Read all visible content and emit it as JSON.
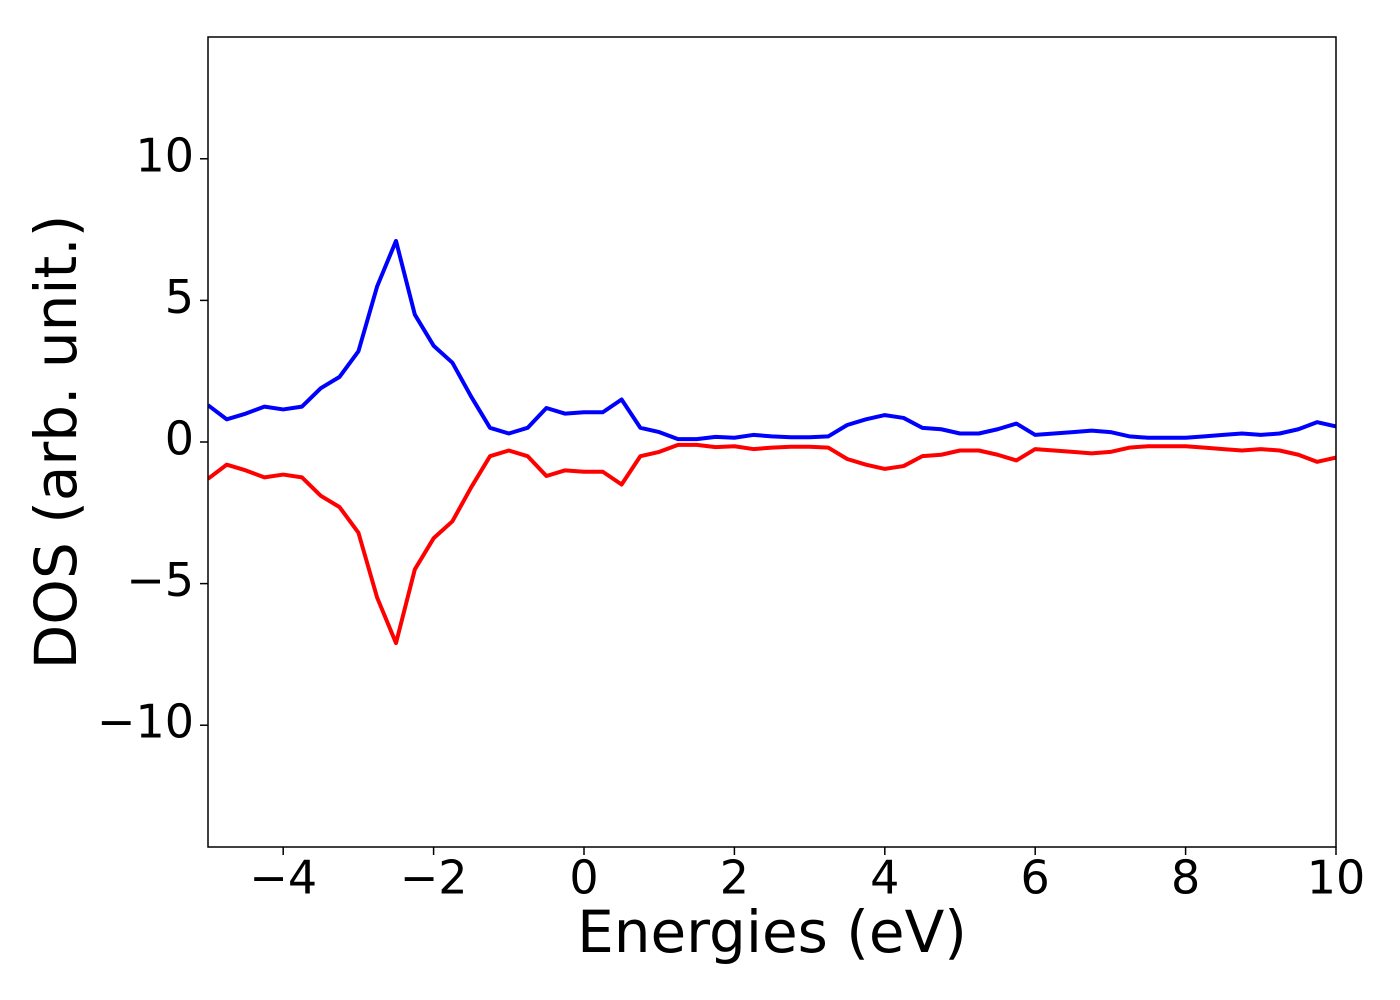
{
  "chart_data": {
    "type": "line",
    "x_label": "Energies (eV)",
    "y_label": "DOS (arb. unit.)",
    "x": [
      -5,
      -4.75,
      -4.5,
      -4.25,
      -4,
      -3.75,
      -3.5,
      -3.25,
      -3,
      -2.75,
      -2.5,
      -2.25,
      -2,
      -1.75,
      -1.5,
      -1.25,
      -1,
      -0.75,
      -0.5,
      -0.25,
      0,
      0.25,
      0.5,
      0.75,
      1,
      1.25,
      1.5,
      1.75,
      2,
      2.25,
      2.5,
      2.75,
      3,
      3.25,
      3.5,
      3.75,
      4,
      4.25,
      4.5,
      4.75,
      5,
      5.25,
      5.5,
      5.75,
      6,
      6.25,
      6.5,
      6.75,
      7,
      7.25,
      7.5,
      7.75,
      8,
      8.25,
      8.5,
      8.75,
      9,
      9.25,
      9.5,
      9.75,
      10
    ],
    "series": [
      {
        "color": "#0000ff",
        "values": [
          1.3,
          0.8,
          1.0,
          1.25,
          1.15,
          1.25,
          1.9,
          2.3,
          3.2,
          5.5,
          7.1,
          4.5,
          3.4,
          2.8,
          1.6,
          0.5,
          0.3,
          0.5,
          1.2,
          1.0,
          1.05,
          1.05,
          1.5,
          0.5,
          0.35,
          0.1,
          0.1,
          0.18,
          0.15,
          0.25,
          0.2,
          0.17,
          0.17,
          0.2,
          0.6,
          0.8,
          0.95,
          0.85,
          0.5,
          0.45,
          0.3,
          0.3,
          0.45,
          0.65,
          0.25,
          0.3,
          0.35,
          0.4,
          0.35,
          0.2,
          0.15,
          0.15,
          0.15,
          0.2,
          0.25,
          0.3,
          0.25,
          0.3,
          0.45,
          0.7,
          0.55
        ]
      },
      {
        "color": "#ff0000",
        "values": [
          -1.3,
          -0.8,
          -1.0,
          -1.25,
          -1.15,
          -1.25,
          -1.9,
          -2.3,
          -3.2,
          -5.5,
          -7.1,
          -4.5,
          -3.4,
          -2.8,
          -1.6,
          -0.5,
          -0.3,
          -0.5,
          -1.2,
          -1.0,
          -1.05,
          -1.05,
          -1.5,
          -0.5,
          -0.35,
          -0.1,
          -0.1,
          -0.18,
          -0.15,
          -0.25,
          -0.2,
          -0.17,
          -0.17,
          -0.2,
          -0.6,
          -0.8,
          -0.95,
          -0.85,
          -0.5,
          -0.45,
          -0.3,
          -0.3,
          -0.45,
          -0.65,
          -0.25,
          -0.3,
          -0.35,
          -0.4,
          -0.35,
          -0.2,
          -0.15,
          -0.15,
          -0.15,
          -0.2,
          -0.25,
          -0.3,
          -0.25,
          -0.3,
          -0.45,
          -0.7,
          -0.55
        ]
      }
    ],
    "xlim": [
      -5,
      10
    ],
    "ylim": [
      -14.3,
      14.3
    ],
    "xticks": [
      {
        "value": -4,
        "label": "−4"
      },
      {
        "value": -2,
        "label": "−2"
      },
      0,
      2,
      4,
      6,
      8,
      10
    ],
    "yticks": [
      {
        "value": -10,
        "label": "−10"
      },
      {
        "value": -5,
        "label": "−5"
      },
      0,
      5,
      10
    ],
    "grid": false
  }
}
